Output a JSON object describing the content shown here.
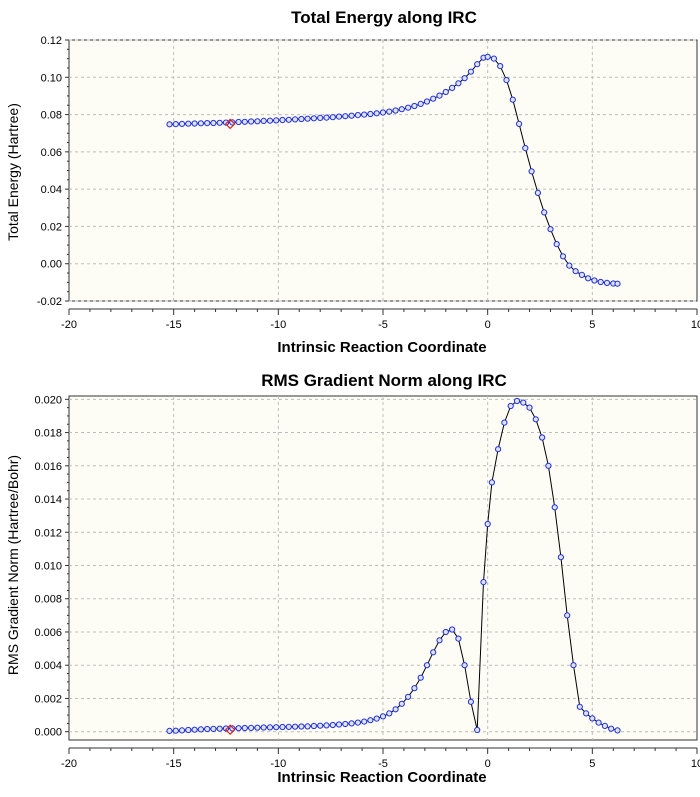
{
  "chart_data": [
    {
      "type": "line",
      "title": "Total Energy along IRC",
      "xlabel": "Intrinsic Reaction Coordinate",
      "ylabel": "Total Energy (Hartree)",
      "xlim": [
        -20,
        10
      ],
      "ylim": [
        -0.02,
        0.12
      ],
      "xticks": [
        "-20",
        "-15",
        "-10",
        "-5",
        "0",
        "5",
        "10"
      ],
      "yticks": [
        "-0.02",
        "0.00",
        "0.02",
        "0.04",
        "0.06",
        "0.08",
        "0.10",
        "0.12"
      ],
      "grid": true,
      "highlight": {
        "x": -12.3,
        "y": 0.075
      },
      "series": [
        {
          "x": [
            -15.2,
            -14.9,
            -14.6,
            -14.3,
            -14.0,
            -13.7,
            -13.4,
            -13.1,
            -12.8,
            -12.5,
            -12.2,
            -11.9,
            -11.6,
            -11.3,
            -11.0,
            -10.7,
            -10.4,
            -10.1,
            -9.8,
            -9.5,
            -9.2,
            -8.9,
            -8.6,
            -8.3,
            -8.0,
            -7.7,
            -7.4,
            -7.1,
            -6.8,
            -6.5,
            -6.2,
            -5.9,
            -5.6,
            -5.3,
            -5.0,
            -4.7,
            -4.4,
            -4.1,
            -3.8,
            -3.5,
            -3.2,
            -2.9,
            -2.6,
            -2.3,
            -2.0,
            -1.7,
            -1.4,
            -1.1,
            -0.8,
            -0.5,
            -0.2,
            0.0,
            0.3,
            0.6,
            0.9,
            1.2,
            1.5,
            1.8,
            2.1,
            2.4,
            2.7,
            3.0,
            3.3,
            3.6,
            3.9,
            4.2,
            4.5,
            4.8,
            5.1,
            5.4,
            5.7,
            6.0,
            6.2
          ],
          "y": [
            0.0748,
            0.0749,
            0.075,
            0.0751,
            0.0752,
            0.0753,
            0.0754,
            0.0755,
            0.0756,
            0.0757,
            0.0758,
            0.076,
            0.0761,
            0.0763,
            0.0764,
            0.0766,
            0.0767,
            0.0769,
            0.0771,
            0.0772,
            0.0774,
            0.0776,
            0.0778,
            0.078,
            0.0782,
            0.0784,
            0.0786,
            0.0789,
            0.0791,
            0.0794,
            0.0797,
            0.08,
            0.0803,
            0.0807,
            0.0811,
            0.0816,
            0.0822,
            0.0829,
            0.0837,
            0.0846,
            0.0857,
            0.087,
            0.0885,
            0.0902,
            0.0921,
            0.0943,
            0.0968,
            0.0995,
            0.103,
            0.107,
            0.1105,
            0.111,
            0.11,
            0.106,
            0.0985,
            0.088,
            0.075,
            0.062,
            0.0495,
            0.038,
            0.0275,
            0.0185,
            0.0105,
            0.004,
            -0.001,
            -0.004,
            -0.006,
            -0.0078,
            -0.009,
            -0.0098,
            -0.0103,
            -0.0106,
            -0.0107
          ]
        }
      ]
    },
    {
      "type": "line",
      "title": "RMS Gradient Norm along IRC",
      "xlabel": "Intrinsic Reaction Coordinate",
      "ylabel": "RMS Gradient Norm (Hartree/Bohr)",
      "xlim": [
        -20,
        10
      ],
      "ylim": [
        -0.0005,
        0.0202
      ],
      "xticks": [
        "-20",
        "-15",
        "-10",
        "-5",
        "0",
        "5",
        "10"
      ],
      "yticks": [
        "0.000",
        "0.002",
        "0.004",
        "0.006",
        "0.008",
        "0.010",
        "0.012",
        "0.014",
        "0.016",
        "0.018",
        "0.020"
      ],
      "grid": true,
      "highlight": {
        "x": -12.3,
        "y": 0.00012
      },
      "series": [
        {
          "x": [
            -15.2,
            -14.9,
            -14.6,
            -14.3,
            -14.0,
            -13.7,
            -13.4,
            -13.1,
            -12.8,
            -12.5,
            -12.2,
            -11.9,
            -11.6,
            -11.3,
            -11.0,
            -10.7,
            -10.4,
            -10.1,
            -9.8,
            -9.5,
            -9.2,
            -8.9,
            -8.6,
            -8.3,
            -8.0,
            -7.7,
            -7.4,
            -7.1,
            -6.8,
            -6.5,
            -6.2,
            -5.9,
            -5.6,
            -5.3,
            -5.0,
            -4.7,
            -4.4,
            -4.1,
            -3.8,
            -3.5,
            -3.2,
            -2.9,
            -2.6,
            -2.3,
            -2.0,
            -1.7,
            -1.4,
            -1.1,
            -0.8,
            -0.5,
            -0.2,
            0.0,
            0.2,
            0.5,
            0.8,
            1.1,
            1.4,
            1.7,
            2.0,
            2.3,
            2.6,
            2.9,
            3.2,
            3.5,
            3.8,
            4.1,
            4.4,
            4.7,
            5.0,
            5.3,
            5.6,
            5.9,
            6.2
          ],
          "y": [
            5e-05,
            6e-05,
            8e-05,
            0.0001,
            0.00012,
            0.00014,
            0.00016,
            0.00017,
            0.00018,
            0.00019,
            0.0002,
            0.00021,
            0.00022,
            0.00023,
            0.00024,
            0.00025,
            0.00026,
            0.00027,
            0.00028,
            0.00029,
            0.0003,
            0.00031,
            0.00032,
            0.00034,
            0.00036,
            0.00038,
            0.0004,
            0.00043,
            0.00046,
            0.0005,
            0.00055,
            0.00061,
            0.00069,
            0.00079,
            0.00092,
            0.0011,
            0.00135,
            0.00168,
            0.0021,
            0.00262,
            0.00325,
            0.004,
            0.00478,
            0.0055,
            0.006,
            0.00615,
            0.0056,
            0.004,
            0.0018,
            0.0001,
            0.009,
            0.0125,
            0.015,
            0.017,
            0.0186,
            0.0196,
            0.0199,
            0.0198,
            0.0195,
            0.0188,
            0.0177,
            0.016,
            0.0135,
            0.0105,
            0.007,
            0.004,
            0.0015,
            0.0011,
            0.0008,
            0.00055,
            0.00035,
            0.00018,
            8e-05
          ]
        }
      ]
    }
  ]
}
